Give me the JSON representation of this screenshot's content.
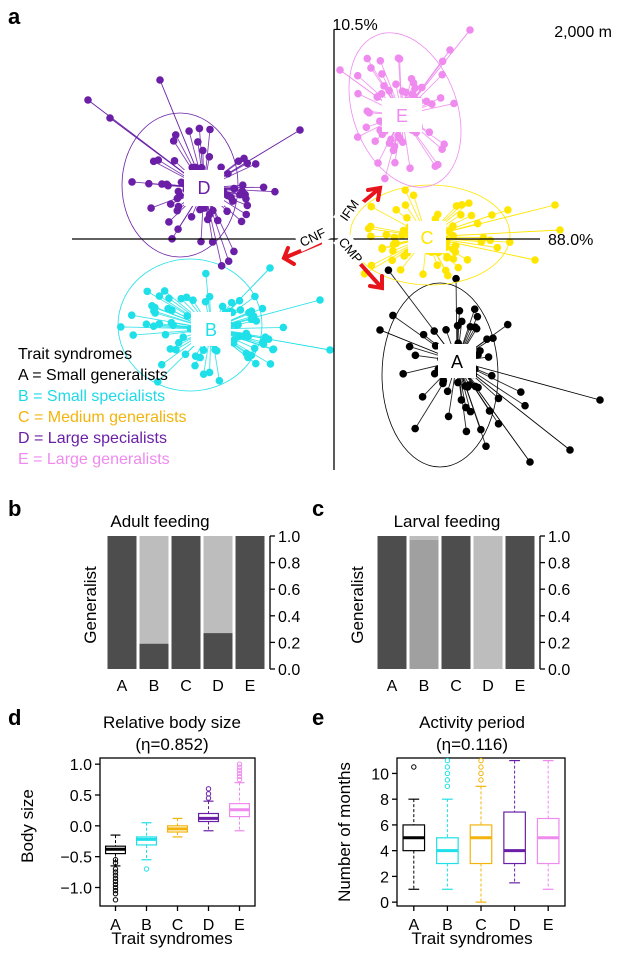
{
  "colors": {
    "A": "#000000",
    "B": "#1fe0e8",
    "C": "#ffe600",
    "C_text": "#f2b40c",
    "D": "#6a1fa6",
    "E": "#ef8aef",
    "bar_dark": "#4d4d4d",
    "bar_light": "#bdbdbd",
    "arrow": "#e8141c",
    "leg_B": "#1fd8e8",
    "leg_C": "#f2b40c",
    "leg_D": "#6a1fa6",
    "leg_E": "#ef8aef"
  },
  "panel_labels": {
    "a": "a",
    "b": "b",
    "c": "c",
    "d": "d",
    "e": "e"
  },
  "chart_data": [
    {
      "panel": "a",
      "type": "scatter",
      "axis_labels": {
        "y_pct": "10.5%",
        "x_pct": "88.0%",
        "elevation": "2,000 m"
      },
      "groups": [
        {
          "label": "A",
          "center": [
            0.55,
            -0.58
          ],
          "color": "black"
        },
        {
          "label": "B",
          "center": [
            -0.62,
            -0.42
          ],
          "color": "cyan"
        },
        {
          "label": "C",
          "center": [
            0.42,
            0.02
          ],
          "color": "yellow"
        },
        {
          "label": "D",
          "center": [
            -0.62,
            0.35
          ],
          "color": "purple"
        },
        {
          "label": "E",
          "center": [
            0.33,
            0.85
          ],
          "color": "violet"
        }
      ],
      "arrows": [
        "CNF",
        "IFM",
        "CMP"
      ],
      "legend": {
        "title": "Trait syndromes",
        "items": [
          "A = Small generalists",
          "B = Small specialists",
          "C = Medium generalists",
          "D = Large specialists",
          "E = Large generalists"
        ]
      }
    },
    {
      "panel": "b",
      "type": "bar",
      "title": "Adult feeding",
      "ylabel": "Generalist",
      "categories": [
        "A",
        "B",
        "C",
        "D",
        "E"
      ],
      "values": [
        1.0,
        0.19,
        1.0,
        0.27,
        1.0
      ],
      "ylim": [
        0,
        1.0
      ],
      "yticks": [
        "0.0",
        "0.2",
        "0.4",
        "0.6",
        "0.8",
        "1.0"
      ]
    },
    {
      "panel": "c",
      "type": "bar",
      "title": "Larval feeding",
      "ylabel": "Generalist",
      "categories": [
        "A",
        "B",
        "C",
        "D",
        "E"
      ],
      "values": [
        1.0,
        0.97,
        1.0,
        0.0,
        1.0
      ],
      "ylim": [
        0,
        1.0
      ],
      "yticks": [
        "0.0",
        "0.2",
        "0.4",
        "0.6",
        "0.8",
        "1.0"
      ]
    },
    {
      "panel": "d",
      "type": "box",
      "title": "Relative body size",
      "subtitle": "(η=0.852)",
      "ylabel": "Body size",
      "xlabel": "Trait syndromes",
      "categories": [
        "A",
        "B",
        "C",
        "D",
        "E"
      ],
      "ylim": [
        -1.3,
        1.1
      ],
      "yticks": [
        "−1.0",
        "−0.5",
        "0.0",
        "0.5",
        "1.0"
      ],
      "boxes": [
        {
          "min": -0.65,
          "q1": -0.45,
          "median": -0.38,
          "q3": -0.33,
          "max": -0.15
        },
        {
          "min": -0.55,
          "q1": -0.31,
          "median": -0.22,
          "q3": -0.18,
          "max": 0.05
        },
        {
          "min": -0.18,
          "q1": -0.1,
          "median": -0.05,
          "q3": 0.0,
          "max": 0.12
        },
        {
          "min": -0.08,
          "q1": 0.07,
          "median": 0.12,
          "q3": 0.2,
          "max": 0.4
        },
        {
          "min": -0.08,
          "q1": 0.15,
          "median": 0.26,
          "q3": 0.36,
          "max": 0.7
        }
      ]
    },
    {
      "panel": "e",
      "type": "box",
      "title": "Activity period",
      "subtitle": "(η=0.116)",
      "ylabel": "Number of months",
      "xlabel": "Trait syndromes",
      "categories": [
        "A",
        "B",
        "C",
        "D",
        "E"
      ],
      "ylim": [
        -0.3,
        11.2
      ],
      "yticks": [
        "0",
        "2",
        "4",
        "6",
        "8",
        "10"
      ],
      "boxes": [
        {
          "min": 1.0,
          "q1": 4.0,
          "median": 5.0,
          "q3": 6.0,
          "max": 8.0
        },
        {
          "min": 1.0,
          "q1": 3.0,
          "median": 4.0,
          "q3": 5.0,
          "max": 8.0
        },
        {
          "min": 0.0,
          "q1": 3.0,
          "median": 5.0,
          "q3": 6.0,
          "max": 9.0
        },
        {
          "min": 1.5,
          "q1": 3.0,
          "median": 4.0,
          "q3": 7.0,
          "max": 11.0
        },
        {
          "min": 1.0,
          "q1": 3.0,
          "median": 5.0,
          "q3": 6.5,
          "max": 11.0
        }
      ]
    }
  ]
}
